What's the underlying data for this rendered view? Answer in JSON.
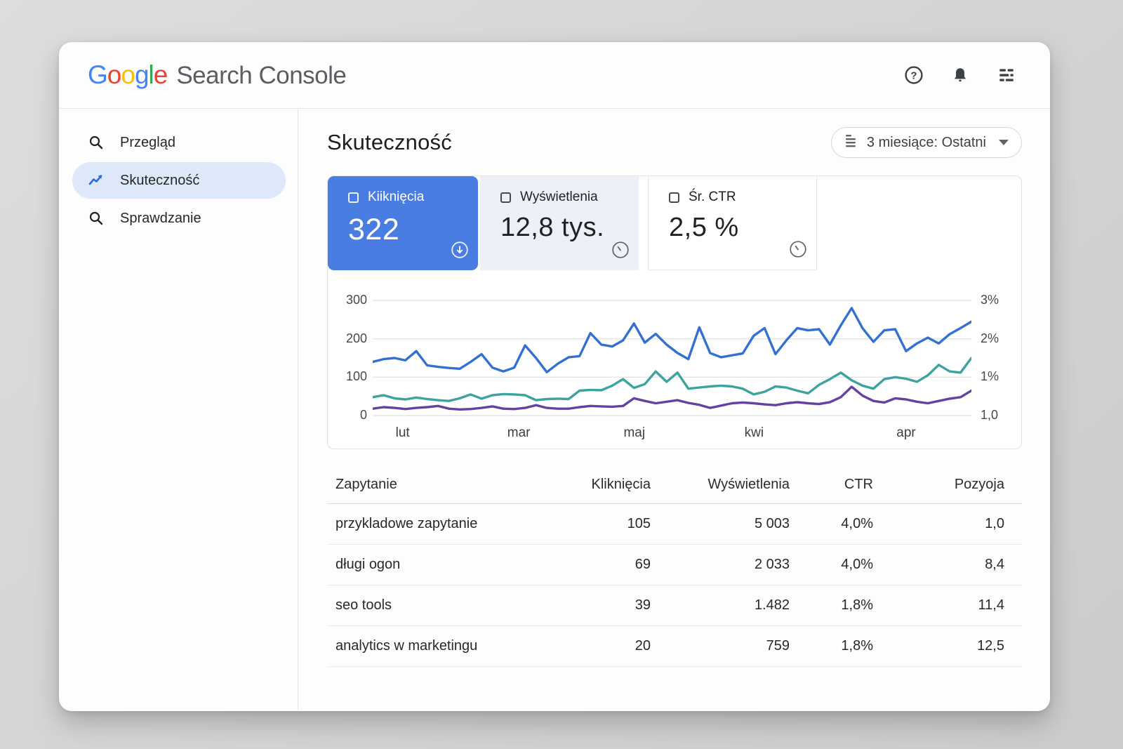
{
  "header": {
    "logo_letters": [
      {
        "ch": "G",
        "color": "#4285F4"
      },
      {
        "ch": "o",
        "color": "#EA4335"
      },
      {
        "ch": "o",
        "color": "#FBBC05"
      },
      {
        "ch": "g",
        "color": "#4285F4"
      },
      {
        "ch": "l",
        "color": "#34A853"
      },
      {
        "ch": "e",
        "color": "#EA4335"
      }
    ],
    "product_name": "Search Console",
    "actions": [
      {
        "name": "help-icon",
        "glyph": "?"
      },
      {
        "name": "notifications-bell-icon"
      },
      {
        "name": "settings-menu-icon"
      }
    ]
  },
  "sidebar": {
    "selected_bg": "#dde8f8",
    "items": [
      {
        "label": "Przegląd",
        "icon": "search-icon",
        "selected": false
      },
      {
        "label": "Skuteczność",
        "icon": "trending-up-icon",
        "selected": true
      },
      {
        "label": "Sprawdzanie",
        "icon": "search-icon",
        "selected": false
      }
    ]
  },
  "main": {
    "title": "Skuteczność",
    "date_filter": {
      "icon": "filter-icon",
      "label": "3 miesiące: Ostatni"
    },
    "metrics": [
      {
        "label": "Kiiknięcia",
        "value": "322",
        "selected": true,
        "bg": "#4a7de2",
        "badge_icon": "arrow-down-circle-icon"
      },
      {
        "label": "Wyświetlenia",
        "value": "12,8 tys.",
        "selected": false,
        "bg": "#edf1f7",
        "badge_icon": "clock-circle-icon"
      },
      {
        "label": "Śr. CTR",
        "value": "2,5 %",
        "selected": false,
        "bg": "#ffffff",
        "badge_icon": "clock-circle-icon"
      }
    ]
  },
  "chart_data": {
    "type": "line",
    "title": "",
    "xlabel": "",
    "ylabel": "",
    "grid": true,
    "legend_position": "none",
    "ylim": [
      0,
      300
    ],
    "y_gridline_values": [
      300,
      200,
      100,
      0
    ],
    "y_left_ticks": [
      "300",
      "200",
      "100",
      "0"
    ],
    "y_right_ticks": [
      "3%",
      "2%",
      "1%",
      "1,0"
    ],
    "x_tick_labels": [
      "lut",
      "mar",
      "maj",
      "kwi",
      "apr"
    ],
    "x_tick_positions_pct": [
      5.0,
      24.4,
      43.7,
      63.7,
      89.1
    ],
    "series": [
      {
        "name": "Kliknięcia",
        "color": "#3470d2",
        "values": [
          140,
          147,
          150,
          144,
          168,
          131,
          127,
          124,
          122,
          140,
          160,
          125,
          115,
          125,
          183,
          150,
          113,
          135,
          152,
          155,
          215,
          185,
          180,
          196,
          240,
          190,
          213,
          185,
          163,
          147,
          230,
          163,
          152,
          157,
          162,
          208,
          228,
          160,
          196,
          228,
          222,
          225,
          185,
          235,
          280,
          228,
          192,
          222,
          225,
          168,
          188,
          203,
          188,
          212,
          228,
          245
        ]
      },
      {
        "name": "Wyświetlenia",
        "color": "#3da39e",
        "values": [
          48,
          53,
          45,
          42,
          47,
          43,
          40,
          38,
          45,
          55,
          44,
          53,
          56,
          55,
          53,
          40,
          43,
          44,
          43,
          65,
          67,
          66,
          78,
          95,
          72,
          82,
          115,
          88,
          112,
          70,
          73,
          76,
          78,
          76,
          70,
          55,
          62,
          76,
          73,
          65,
          58,
          80,
          95,
          112,
          92,
          78,
          70,
          95,
          100,
          96,
          88,
          105,
          132,
          115,
          112,
          150
        ]
      },
      {
        "name": "Śr. CTR",
        "color": "#6641a4",
        "values": [
          18,
          22,
          20,
          17,
          20,
          22,
          25,
          18,
          16,
          17,
          20,
          24,
          18,
          17,
          20,
          27,
          20,
          18,
          18,
          22,
          25,
          24,
          23,
          25,
          45,
          38,
          32,
          36,
          40,
          33,
          28,
          20,
          26,
          32,
          34,
          32,
          29,
          27,
          32,
          35,
          32,
          30,
          35,
          48,
          75,
          52,
          38,
          34,
          45,
          42,
          36,
          32,
          38,
          44,
          48,
          65
        ]
      }
    ]
  },
  "table": {
    "columns": [
      "Zapytanie",
      "Kliknięcia",
      "Wyświetlenia",
      "CTR",
      "Pozyoja"
    ],
    "rows": [
      [
        "przykladowe zapytanie",
        "105",
        "5 003",
        "4,0%",
        "1,0"
      ],
      [
        "długi ogon",
        "69",
        "2 033",
        "4,0%",
        "8,4"
      ],
      [
        "seo tools",
        "39",
        "1.482",
        "1,8%",
        "11,4"
      ],
      [
        "analytics w marketingu",
        "20",
        "759",
        "1,8%",
        "12,5"
      ]
    ]
  }
}
